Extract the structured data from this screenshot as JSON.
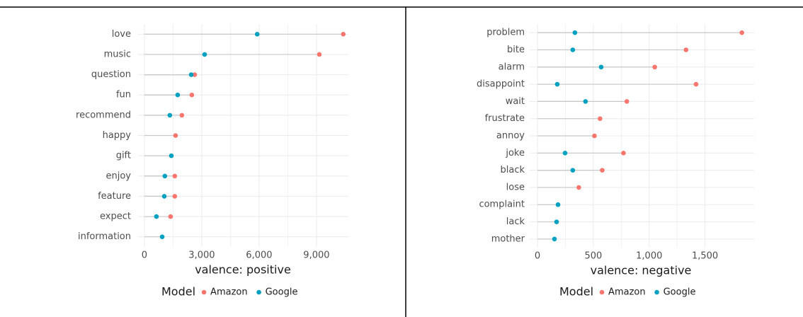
{
  "chart_data": [
    {
      "type": "dot",
      "categories": [
        "love",
        "music",
        "question",
        "fun",
        "recommend",
        "happy",
        "gift",
        "enjoy",
        "feature",
        "expect",
        "information"
      ],
      "series": [
        {
          "name": "Amazon",
          "color": "#F8766D",
          "values": [
            10400,
            9150,
            2630,
            2480,
            1960,
            1630,
            null,
            1590,
            1590,
            1370,
            null
          ]
        },
        {
          "name": "Google",
          "color": "#00A0C0",
          "values": [
            5900,
            3150,
            2450,
            1740,
            1330,
            null,
            1410,
            1070,
            1040,
            630,
            930
          ]
        }
      ],
      "xlim": [
        -330,
        10670
      ],
      "xticks": [
        0,
        {
          "value": 3000,
          "label": "3,000"
        },
        {
          "value": 6000,
          "label": "6,000"
        },
        {
          "value": 9000,
          "label": "9,000"
        }
      ],
      "xlabel": "valence: positive",
      "legend_title": "Model",
      "grid": true
    },
    {
      "type": "dot",
      "categories": [
        "problem",
        "bite",
        "alarm",
        "disappoint",
        "wait",
        "frustrate",
        "annoy",
        "joke",
        "black",
        "lose",
        "complaint",
        "lack",
        "mother"
      ],
      "series": [
        {
          "name": "Amazon",
          "color": "#F8766D",
          "values": [
            1830,
            1330,
            1050,
            1420,
            800,
            560,
            510,
            770,
            580,
            370,
            null,
            null,
            null
          ]
        },
        {
          "name": "Google",
          "color": "#00A0C0",
          "values": [
            335,
            316,
            570,
            177,
            430,
            null,
            null,
            247,
            316,
            null,
            184,
            171,
            152
          ]
        }
      ],
      "xlim": [
        -70,
        1940
      ],
      "xticks": [
        0,
        500,
        {
          "value": 1000,
          "label": "1,000"
        },
        {
          "value": 1500,
          "label": "1,500"
        }
      ],
      "xlabel": "valence: negative",
      "legend_title": "Model",
      "grid": true
    }
  ]
}
